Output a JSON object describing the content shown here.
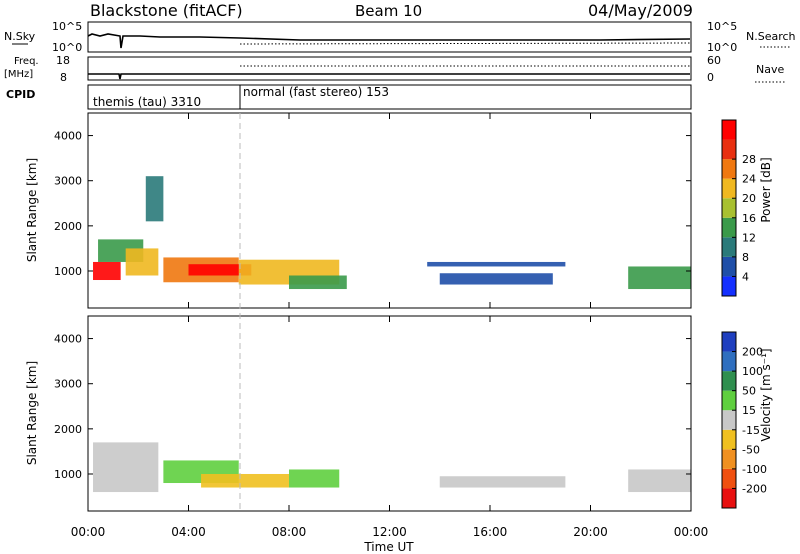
{
  "header": {
    "station": "Blackstone (fitACF)",
    "beam": "Beam 10",
    "date": "04/May/2009"
  },
  "panels": {
    "nsky_label": "N.Sky",
    "nsearch_label": "N.Search",
    "nsky_ticks": [
      "10^5",
      "10^0"
    ],
    "nsearch_ticks": [
      "10^5",
      "10^0"
    ],
    "freq_label": "Freq.",
    "freq_unit": "[MHz]",
    "freq_ticks": [
      "18",
      "8"
    ],
    "nave_label": "Nave",
    "nave_ticks": [
      "60",
      "0"
    ],
    "cpid_label": "CPID",
    "cpid_modes": [
      "themis (tau) 3310",
      "normal (fast stereo) 153"
    ]
  },
  "axes": {
    "xlabel": "Time UT",
    "xticks": [
      "00:00",
      "04:00",
      "08:00",
      "12:00",
      "16:00",
      "20:00",
      "00:00"
    ],
    "ylabel": "Slant Range [km]",
    "yticks": [
      "1000",
      "2000",
      "3000",
      "4000"
    ]
  },
  "colorbars": {
    "power": {
      "label": "Power [dB]",
      "ticks": [
        "4",
        "8",
        "12",
        "16",
        "20",
        "24",
        "28"
      ],
      "colors": [
        "#1430ff",
        "#1f4fa8",
        "#2a7a7a",
        "#3a9a4a",
        "#a8c030",
        "#f0b820",
        "#f07810",
        "#e83010",
        "#ff0000"
      ]
    },
    "velocity": {
      "label": "Velocity [m s⁻¹]",
      "ticks": [
        "200",
        "100",
        "50",
        "15",
        "-15",
        "-50",
        "-100",
        "-200"
      ],
      "colors": [
        "#1f3fbf",
        "#2f6fbf",
        "#2f8f4f",
        "#5fcf3f",
        "#c8c8c8",
        "#f0c020",
        "#f09020",
        "#f05010",
        "#e81010"
      ]
    }
  },
  "chart_data": [
    {
      "type": "heatmap",
      "title": "Power [dB]",
      "xlabel": "Time UT",
      "ylabel": "Slant Range [km]",
      "xlim": [
        0,
        24
      ],
      "ylim": [
        180,
        4500
      ],
      "zlim": [
        0,
        30
      ],
      "regions": [
        {
          "t0": 0.2,
          "t1": 1.3,
          "r0": 800,
          "r1": 1200,
          "value": 28
        },
        {
          "t0": 0.4,
          "t1": 2.2,
          "r0": 1200,
          "r1": 1700,
          "value": 10
        },
        {
          "t0": 1.5,
          "t1": 2.8,
          "r0": 900,
          "r1": 1500,
          "value": 18
        },
        {
          "t0": 2.3,
          "t1": 3.0,
          "r0": 2100,
          "r1": 3100,
          "value": 8
        },
        {
          "t0": 3.0,
          "t1": 6.0,
          "r0": 750,
          "r1": 1300,
          "value": 22
        },
        {
          "t0": 4.0,
          "t1": 6.5,
          "r0": 900,
          "r1": 1150,
          "value": 28
        },
        {
          "t0": 6.0,
          "t1": 10.0,
          "r0": 700,
          "r1": 1250,
          "value": 18
        },
        {
          "t0": 8.0,
          "t1": 10.3,
          "r0": 600,
          "r1": 900,
          "value": 12
        },
        {
          "t0": 14.0,
          "t1": 18.5,
          "r0": 700,
          "r1": 950,
          "value": 6
        },
        {
          "t0": 13.5,
          "t1": 19.0,
          "r0": 1100,
          "r1": 1200,
          "value": 6
        },
        {
          "t0": 21.5,
          "t1": 24.0,
          "r0": 600,
          "r1": 1100,
          "value": 12
        }
      ]
    },
    {
      "type": "heatmap",
      "title": "Velocity [m s⁻¹]",
      "xlabel": "Time UT",
      "ylabel": "Slant Range [km]",
      "xlim": [
        0,
        24
      ],
      "ylim": [
        180,
        4500
      ],
      "zlim": [
        -200,
        200
      ],
      "regions": [
        {
          "t0": 0.2,
          "t1": 2.8,
          "r0": 600,
          "r1": 1700,
          "value": 0
        },
        {
          "t0": 3.0,
          "t1": 6.0,
          "r0": 800,
          "r1": 1300,
          "value": 40
        },
        {
          "t0": 4.5,
          "t1": 8.0,
          "r0": 700,
          "r1": 1000,
          "value": -30
        },
        {
          "t0": 8.0,
          "t1": 10.0,
          "r0": 700,
          "r1": 1100,
          "value": 30
        },
        {
          "t0": 14.0,
          "t1": 19.0,
          "r0": 700,
          "r1": 950,
          "value": 0
        },
        {
          "t0": 21.5,
          "t1": 24.0,
          "r0": 600,
          "r1": 1100,
          "value": 0
        }
      ]
    }
  ]
}
